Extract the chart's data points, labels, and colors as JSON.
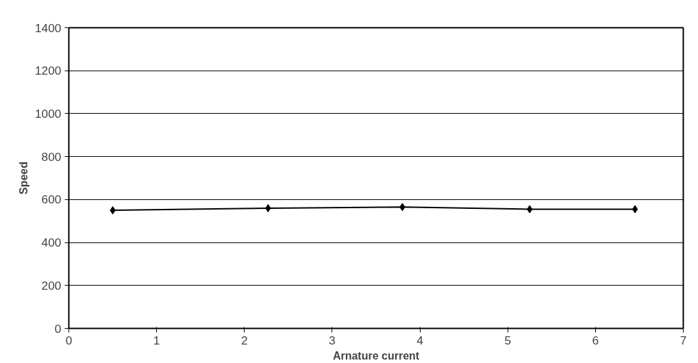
{
  "chart_data": {
    "type": "line",
    "xlabel": "Arnature current",
    "ylabel": "Speed",
    "x": [
      0.5,
      2.27,
      3.8,
      5.25,
      6.45
    ],
    "series": [
      {
        "color": "#000000",
        "values": [
          550,
          560,
          565,
          555,
          555
        ]
      }
    ],
    "xlim": [
      0,
      7
    ],
    "xticks": [
      0,
      1,
      2,
      3,
      4,
      5,
      6,
      7
    ],
    "ylim": [
      0,
      1400
    ],
    "yticks": [
      0,
      200,
      400,
      600,
      800,
      1000,
      1200,
      1400
    ],
    "grid": "y",
    "marker": "diamond",
    "line_style": "solid"
  }
}
